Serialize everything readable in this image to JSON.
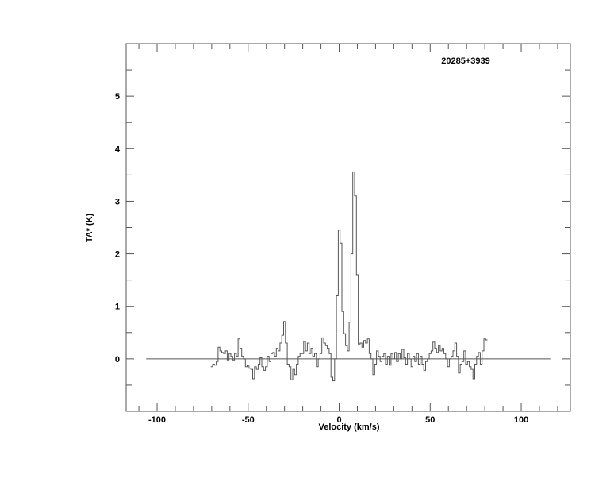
{
  "chart_data": {
    "type": "line",
    "style": "step",
    "title": "20285+3939",
    "xlabel": "Velocity (km/s)",
    "ylabel": "TA* (K)",
    "xlim": [
      -117,
      127
    ],
    "ylim": [
      -1,
      6
    ],
    "xticks": [
      -100,
      -50,
      0,
      50,
      100
    ],
    "xtick_labels": [
      "-100",
      "-50",
      "0",
      "50",
      "100"
    ],
    "x_minor_step": 10,
    "yticks": [
      0,
      1,
      2,
      3,
      4,
      5
    ],
    "ytick_labels": [
      "0",
      "1",
      "2",
      "3",
      "4",
      "5"
    ],
    "y_minor_step": 0.5,
    "grid": false,
    "baseline": {
      "value": 0,
      "x_range": [
        -106,
        116
      ]
    },
    "line_color": "#555555",
    "series": [
      {
        "x": [
          -70,
          -69,
          -68,
          -67,
          -66,
          -65,
          -64,
          -63,
          -62,
          -61,
          -60,
          -59,
          -58,
          -57,
          -56,
          -55,
          -54,
          -53,
          -52,
          -51,
          -50,
          -49,
          -48,
          -47,
          -46,
          -45,
          -44,
          -43,
          -42,
          -41,
          -40,
          -39,
          -38,
          -37,
          -36,
          -35,
          -34,
          -33,
          -32,
          -31,
          -30,
          -29,
          -28,
          -27,
          -26,
          -25,
          -24,
          -23,
          -22,
          -21,
          -20,
          -19,
          -18,
          -17,
          -16,
          -15,
          -14,
          -13,
          -12,
          -11,
          -10,
          -9,
          -8,
          -7,
          -6,
          -5,
          -4,
          -3,
          -2,
          -1,
          0,
          1,
          2,
          3,
          4,
          5,
          6,
          7,
          8,
          9,
          10,
          11,
          12,
          13,
          14,
          15,
          16,
          17,
          18,
          19,
          20,
          21,
          22,
          23,
          24,
          25,
          26,
          27,
          28,
          29,
          30,
          31,
          32,
          33,
          34,
          35,
          36,
          37,
          38,
          39,
          40,
          41,
          42,
          43,
          44,
          45,
          46,
          47,
          48,
          49,
          50,
          51,
          52,
          53,
          54,
          55,
          56,
          57,
          58,
          59,
          60,
          61,
          62,
          63,
          64,
          65,
          66,
          67,
          68,
          69,
          70,
          71,
          72,
          73,
          74,
          75,
          76,
          77,
          78,
          79,
          80,
          81
        ],
        "y": [
          -0.15,
          -0.1,
          -0.12,
          -0.05,
          0.22,
          0.15,
          0.12,
          0.1,
          0.15,
          -0.02,
          0.1,
          0.05,
          -0.02,
          0.1,
          0.05,
          0.38,
          0.2,
          0.05,
          0.0,
          -0.15,
          -0.12,
          -0.18,
          -0.2,
          -0.38,
          -0.15,
          -0.2,
          -0.1,
          0.02,
          -0.15,
          -0.22,
          -0.15,
          0.05,
          -0.05,
          0.1,
          0.12,
          0.05,
          0.2,
          0.15,
          0.3,
          0.45,
          0.71,
          0.3,
          -0.1,
          -0.15,
          -0.4,
          -0.2,
          -0.3,
          -0.1,
          0.05,
          0.1,
          0.1,
          0.33,
          0.15,
          0.3,
          0.1,
          0.2,
          0.05,
          0.1,
          -0.15,
          0.0,
          0.1,
          0.4,
          0.3,
          0.25,
          0.2,
          0.1,
          -0.35,
          -0.42,
          0.0,
          1.2,
          2.45,
          2.2,
          0.9,
          0.48,
          0.25,
          0.15,
          0.7,
          2.0,
          3.56,
          3.1,
          1.6,
          0.28,
          0.3,
          0.22,
          0.35,
          0.3,
          0.38,
          0.1,
          0.0,
          -0.3,
          -0.1,
          0.15,
          0.05,
          -0.05,
          0.05,
          0.1,
          -0.1,
          0.05,
          -0.12,
          0.1,
          0.0,
          0.12,
          -0.05,
          0.1,
          0.0,
          0.18,
          0.02,
          -0.1,
          0.1,
          0.0,
          -0.15,
          0.05,
          -0.05,
          0.1,
          -0.1,
          0.05,
          -0.1,
          -0.22,
          -0.05,
          0.0,
          0.1,
          0.15,
          0.32,
          0.2,
          0.12,
          0.25,
          0.15,
          0.2,
          0.1,
          0.0,
          -0.15,
          0.0,
          0.05,
          0.15,
          0.3,
          0.05,
          -0.27,
          -0.1,
          -0.05,
          0.15,
          -0.1,
          -0.05,
          -0.15,
          -0.2,
          -0.38,
          -0.1,
          0.05,
          0.12,
          -0.1,
          0.15,
          0.38,
          0.36
        ]
      }
    ]
  }
}
